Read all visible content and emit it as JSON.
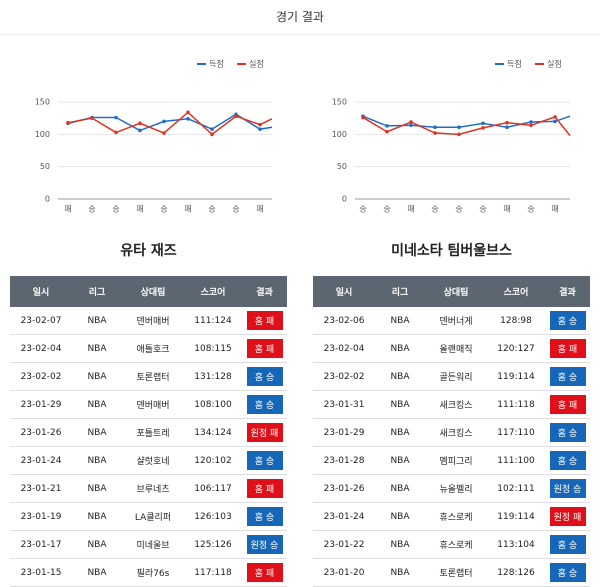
{
  "header": {
    "title": "경기 결과"
  },
  "chart_data": [
    {
      "type": "line",
      "categories": [
        "패",
        "승",
        "승",
        "패",
        "승",
        "패",
        "승",
        "승",
        "패",
        null
      ],
      "series": [
        {
          "name": "득점",
          "color": "#1f6fc5",
          "values": [
            117,
            126,
            126,
            106,
            120,
            124,
            108,
            131,
            108,
            111
          ]
        },
        {
          "name": "실점",
          "color": "#e0321e",
          "values": [
            118,
            125,
            103,
            117,
            102,
            134,
            100,
            128,
            115,
            124
          ]
        }
      ],
      "ylim": [
        0,
        150
      ],
      "yticks": [
        0,
        50,
        100,
        150
      ],
      "grid": true,
      "legend": "top-right"
    },
    {
      "type": "line",
      "categories": [
        "승",
        "승",
        "패",
        "승",
        "승",
        "승",
        "패",
        "승",
        "패",
        null
      ],
      "series": [
        {
          "name": "득점",
          "color": "#1f6fc5",
          "values": [
            128,
            113,
            114,
            111,
            111,
            117,
            111,
            119,
            120,
            128
          ]
        },
        {
          "name": "실점",
          "color": "#e0321e",
          "values": [
            126,
            104,
            119,
            102,
            100,
            110,
            118,
            114,
            127,
            98
          ]
        }
      ],
      "ylim": [
        0,
        150
      ],
      "yticks": [
        0,
        50,
        100,
        150
      ],
      "grid": true,
      "legend": "top-right"
    }
  ],
  "teams": [
    {
      "name": "유타 재즈",
      "columns": [
        "일시",
        "리그",
        "상대팀",
        "스코어",
        "결과"
      ],
      "rows": [
        [
          "23-02-07",
          "NBA",
          "덴버매버",
          "111:124",
          "홈 패"
        ],
        [
          "23-02-04",
          "NBA",
          "애틀호크",
          "108:115",
          "홈 패"
        ],
        [
          "23-02-02",
          "NBA",
          "토론랩터",
          "131:128",
          "홈 승"
        ],
        [
          "23-01-29",
          "NBA",
          "덴버매버",
          "108:100",
          "홈 승"
        ],
        [
          "23-01-26",
          "NBA",
          "포틀트레",
          "134:124",
          "원정 패"
        ],
        [
          "23-01-24",
          "NBA",
          "샬럿호네",
          "120:102",
          "홈 승"
        ],
        [
          "23-01-21",
          "NBA",
          "브루네츠",
          "106:117",
          "홈 패"
        ],
        [
          "23-01-19",
          "NBA",
          "LA클리퍼",
          "126:103",
          "홈 승"
        ],
        [
          "23-01-17",
          "NBA",
          "미네울브",
          "125:126",
          "원정 승"
        ],
        [
          "23-01-15",
          "NBA",
          "필라76s",
          "117:118",
          "홈 패"
        ]
      ]
    },
    {
      "name": "미네소타 팀버울브스",
      "columns": [
        "일시",
        "리그",
        "상대팀",
        "스코어",
        "결과"
      ],
      "rows": [
        [
          "23-02-06",
          "NBA",
          "덴버너게",
          "128:98",
          "홈 승"
        ],
        [
          "23-02-04",
          "NBA",
          "올랜매직",
          "120:127",
          "홈 패"
        ],
        [
          "23-02-02",
          "NBA",
          "골든워리",
          "119:114",
          "홈 승"
        ],
        [
          "23-01-31",
          "NBA",
          "새크킹스",
          "111:118",
          "홈 패"
        ],
        [
          "23-01-29",
          "NBA",
          "새크킹스",
          "117:110",
          "홈 승"
        ],
        [
          "23-01-28",
          "NBA",
          "멤피그리",
          "111:100",
          "홈 승"
        ],
        [
          "23-01-26",
          "NBA",
          "뉴올펠리",
          "102:111",
          "원정 승"
        ],
        [
          "23-01-24",
          "NBA",
          "휴스로케",
          "119:114",
          "원정 패"
        ],
        [
          "23-01-22",
          "NBA",
          "휴스로케",
          "113:104",
          "홈 승"
        ],
        [
          "23-01-20",
          "NBA",
          "토론랩터",
          "128:126",
          "홈 승"
        ]
      ]
    }
  ]
}
